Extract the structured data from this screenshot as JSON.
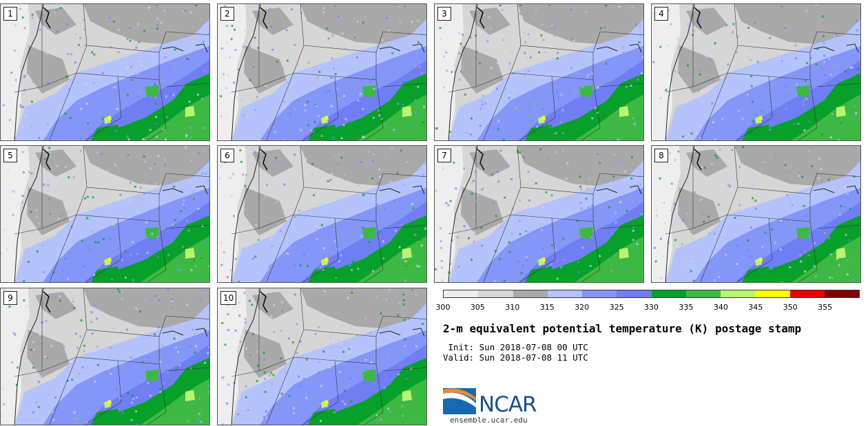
{
  "panels": [
    "1",
    "2",
    "3",
    "4",
    "5",
    "6",
    "7",
    "8",
    "9",
    "10"
  ],
  "colorbar": {
    "ticks": [
      "300",
      "305",
      "310",
      "315",
      "320",
      "325",
      "330",
      "335",
      "340",
      "345",
      "350",
      "355"
    ],
    "colors": [
      "#eeeeee",
      "#d6d6d6",
      "#a9a9a9",
      "#b5c3fc",
      "#8596f9",
      "#6f7ef2",
      "#07a02a",
      "#3db943",
      "#b9f56f",
      "#ffff00",
      "#e60000",
      "#800000"
    ]
  },
  "title": "2-m equivalent potential temperature (K) postage stamp",
  "init": " Init: Sun 2018-07-08 00 UTC",
  "valid": "Valid: Sun 2018-07-08 11 UTC",
  "logo": {
    "name": "NCAR",
    "url": "ensemble.ucar.edu"
  }
}
